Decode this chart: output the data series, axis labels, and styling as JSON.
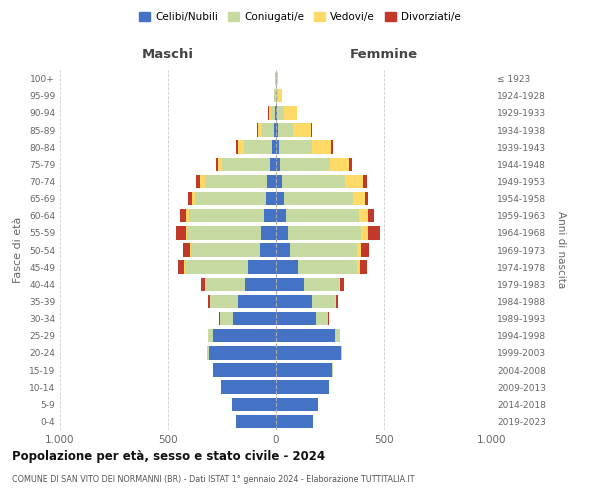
{
  "age_groups": [
    "0-4",
    "5-9",
    "10-14",
    "15-19",
    "20-24",
    "25-29",
    "30-34",
    "35-39",
    "40-44",
    "45-49",
    "50-54",
    "55-59",
    "60-64",
    "65-69",
    "70-74",
    "75-79",
    "80-84",
    "85-89",
    "90-94",
    "95-99",
    "100+"
  ],
  "birth_years": [
    "2019-2023",
    "2014-2018",
    "2009-2013",
    "2004-2008",
    "1999-2003",
    "1994-1998",
    "1989-1993",
    "1984-1988",
    "1979-1983",
    "1974-1978",
    "1969-1973",
    "1964-1968",
    "1959-1963",
    "1954-1958",
    "1949-1953",
    "1944-1948",
    "1939-1943",
    "1934-1938",
    "1929-1933",
    "1924-1928",
    "≤ 1923"
  ],
  "males": {
    "celibe": [
      185,
      205,
      255,
      290,
      310,
      290,
      200,
      175,
      145,
      130,
      75,
      70,
      55,
      45,
      40,
      30,
      20,
      8,
      4,
      2,
      2
    ],
    "coniugato": [
      0,
      0,
      0,
      2,
      8,
      25,
      60,
      130,
      185,
      290,
      320,
      340,
      350,
      330,
      290,
      220,
      130,
      55,
      20,
      5,
      2
    ],
    "vedovo": [
      0,
      0,
      0,
      0,
      0,
      0,
      0,
      0,
      0,
      5,
      5,
      8,
      10,
      15,
      20,
      20,
      25,
      20,
      10,
      2,
      0
    ],
    "divorziato": [
      0,
      0,
      0,
      0,
      2,
      2,
      5,
      8,
      15,
      28,
      30,
      45,
      30,
      18,
      20,
      10,
      8,
      5,
      2,
      0,
      0
    ]
  },
  "females": {
    "nubile": [
      170,
      195,
      245,
      260,
      300,
      275,
      185,
      165,
      130,
      100,
      65,
      55,
      45,
      35,
      30,
      20,
      15,
      10,
      5,
      2,
      2
    ],
    "coniugata": [
      0,
      0,
      0,
      2,
      5,
      20,
      55,
      110,
      160,
      275,
      310,
      340,
      340,
      320,
      290,
      230,
      150,
      70,
      30,
      8,
      2
    ],
    "vedova": [
      0,
      0,
      0,
      0,
      0,
      0,
      2,
      3,
      5,
      15,
      20,
      30,
      40,
      55,
      85,
      90,
      90,
      80,
      60,
      20,
      5
    ],
    "divorziata": [
      0,
      0,
      0,
      0,
      2,
      2,
      5,
      10,
      18,
      32,
      35,
      55,
      30,
      18,
      18,
      12,
      8,
      5,
      2,
      0,
      0
    ]
  },
  "colors": {
    "celibe": "#4472c4",
    "coniugato": "#c5d9a0",
    "vedovo": "#ffd966",
    "divorziato": "#c0392b"
  },
  "xlim": 1000,
  "title": "Popolazione per età, sesso e stato civile - 2024",
  "subtitle": "COMUNE DI SAN VITO DEI NORMANNI (BR) - Dati ISTAT 1° gennaio 2024 - Elaborazione TUTTITALIA.IT",
  "ylabel": "Fasce di età",
  "ylabel_right": "Anni di nascita",
  "legend_labels": [
    "Celibi/Nubili",
    "Coniugati/e",
    "Vedovi/e",
    "Divorziati/e"
  ],
  "background_color": "#ffffff"
}
